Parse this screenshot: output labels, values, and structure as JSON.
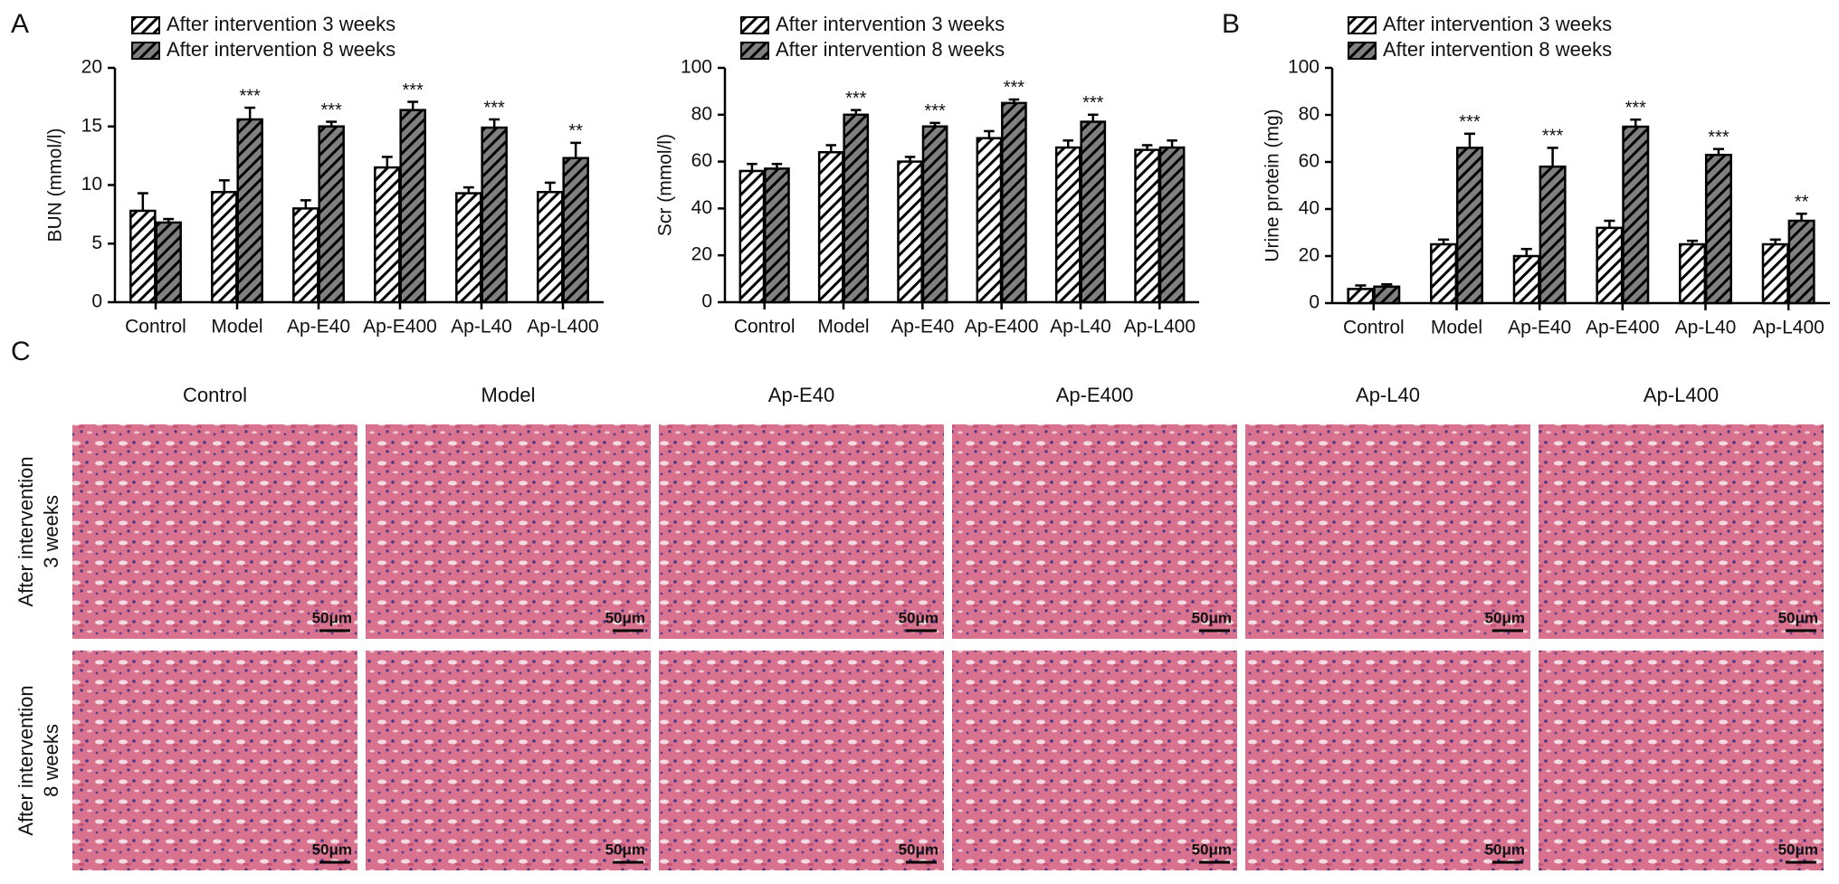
{
  "panel_labels": [
    "A",
    "B",
    "C"
  ],
  "chart_data": [
    {
      "type": "bar",
      "ylabel": "BUN (mmol/l)",
      "categories": [
        "Control",
        "Model",
        "Ap-E40",
        "Ap-E400",
        "Ap-L40",
        "Ap-L400"
      ],
      "series": [
        {
          "name": "After intervention 3 weeks",
          "color": "#ffffff",
          "values": [
            7.8,
            9.4,
            8.0,
            11.5,
            9.3,
            9.4
          ],
          "errors": [
            1.5,
            1.0,
            0.7,
            0.9,
            0.5,
            0.8
          ]
        },
        {
          "name": "After intervention 8 weeks",
          "color": "#808080",
          "values": [
            6.8,
            15.6,
            15.0,
            16.4,
            14.9,
            12.3
          ],
          "errors": [
            0.3,
            1.0,
            0.4,
            0.7,
            0.7,
            1.3
          ],
          "annotations": [
            null,
            "***",
            "***",
            "***",
            "***",
            "**"
          ]
        }
      ],
      "ylim": [
        0,
        20
      ],
      "yticks": [
        0,
        5,
        10,
        15,
        20
      ],
      "legend": "top-left"
    },
    {
      "type": "bar",
      "ylabel": "Scr (mmol/l)",
      "categories": [
        "Control",
        "Model",
        "Ap-E40",
        "Ap-E400",
        "Ap-L40",
        "Ap-L400"
      ],
      "series": [
        {
          "name": "After intervention 3 weeks",
          "color": "#ffffff",
          "values": [
            56,
            64,
            60,
            70,
            66,
            65
          ],
          "errors": [
            3,
            3,
            2,
            3,
            3,
            2
          ]
        },
        {
          "name": "After intervention 8 weeks",
          "color": "#808080",
          "values": [
            57,
            80,
            75,
            85,
            77,
            66
          ],
          "errors": [
            2,
            2,
            1.5,
            1.5,
            3,
            3
          ],
          "annotations": [
            null,
            "***",
            "***",
            "***",
            "***",
            null
          ]
        }
      ],
      "ylim": [
        0,
        100
      ],
      "yticks": [
        0,
        20,
        40,
        60,
        80,
        100
      ],
      "legend": "top-left"
    },
    {
      "type": "bar",
      "ylabel": "Urine protein (mg)",
      "categories": [
        "Control",
        "Model",
        "Ap-E40",
        "Ap-E400",
        "Ap-L40",
        "Ap-L400"
      ],
      "series": [
        {
          "name": "After intervention 3 weeks",
          "color": "#ffffff",
          "values": [
            6,
            25,
            20,
            32,
            25,
            25
          ],
          "errors": [
            1.5,
            2,
            3,
            3,
            1.5,
            2
          ]
        },
        {
          "name": "After intervention 8 weeks",
          "color": "#808080",
          "values": [
            7,
            66,
            58,
            75,
            63,
            35
          ],
          "errors": [
            1,
            6,
            8,
            3,
            2.5,
            3
          ],
          "annotations": [
            null,
            "***",
            "***",
            "***",
            "***",
            "**"
          ]
        }
      ],
      "ylim": [
        0,
        100
      ],
      "yticks": [
        0,
        20,
        40,
        60,
        80,
        100
      ],
      "legend": "top-left"
    }
  ],
  "histology": {
    "columns": [
      "Control",
      "Model",
      "Ap-E40",
      "Ap-E400",
      "Ap-L40",
      "Ap-L400"
    ],
    "rows": [
      [
        "After intervention",
        "3 weeks"
      ],
      [
        "After intervention",
        "8 weeks"
      ]
    ],
    "scale_bar": "50μm"
  }
}
